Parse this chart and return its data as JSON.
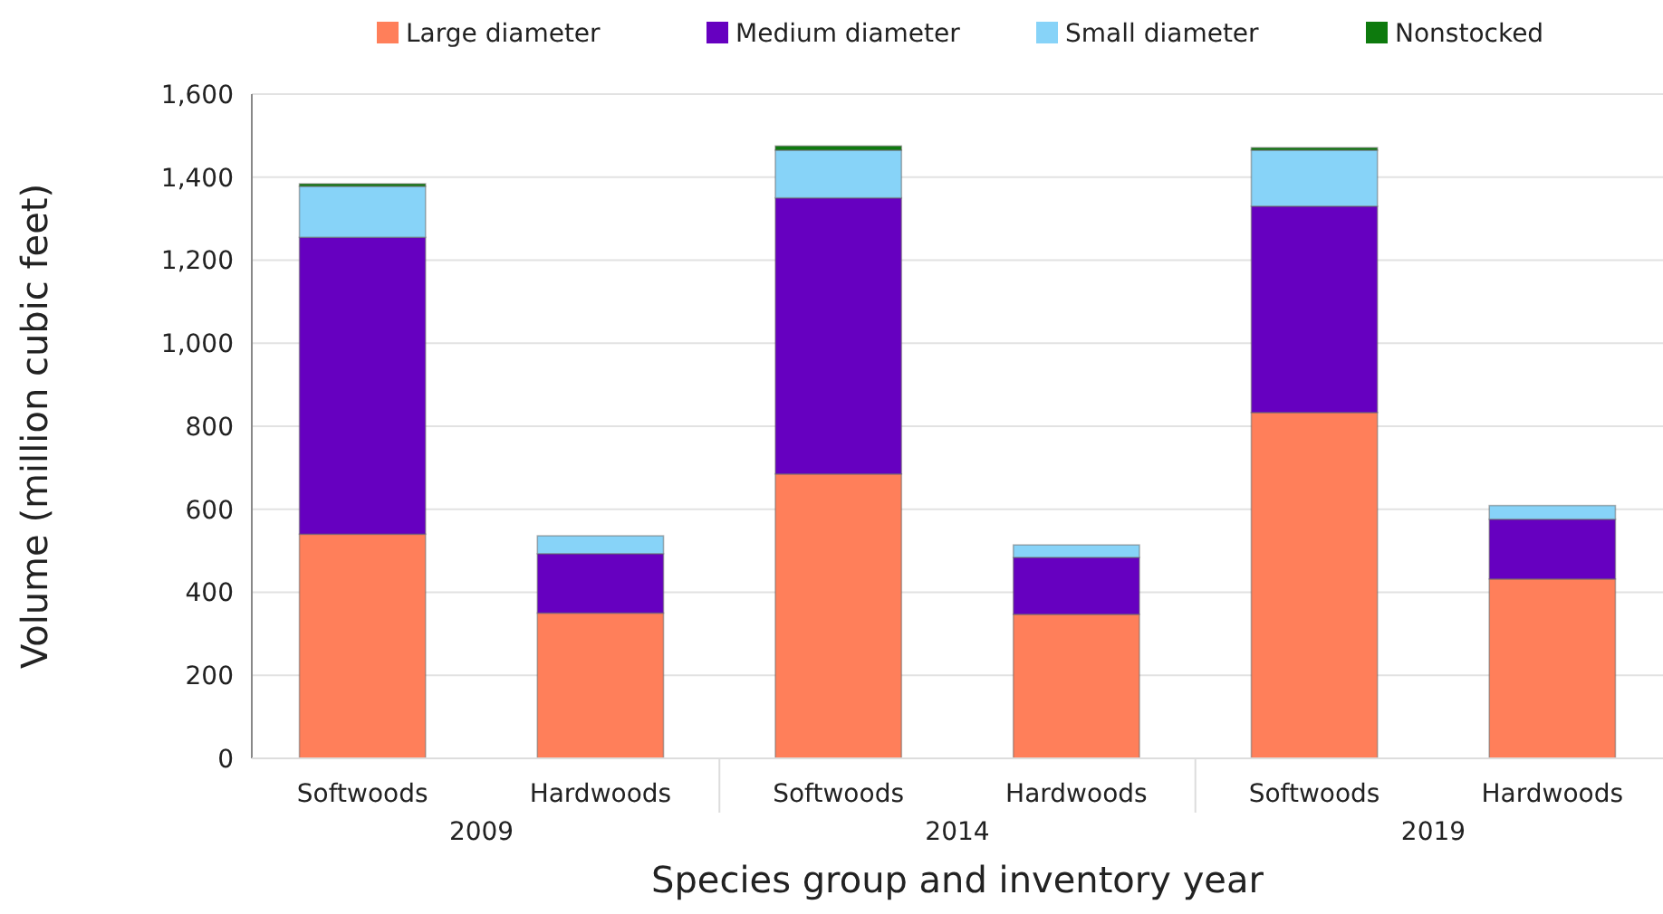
{
  "chart_data": {
    "type": "bar",
    "stacked": true,
    "xlabel": "Species group and inventory year",
    "ylabel": "Volume (million cubic feet)",
    "categories": [
      "Softwoods",
      "Hardwoods",
      "Softwoods",
      "Hardwoods",
      "Softwoods",
      "Hardwoods"
    ],
    "annotations": [
      "2009",
      "2014",
      "2019"
    ],
    "series": [
      {
        "name": "Large diameter",
        "color": "#ff7f5a",
        "values": [
          540,
          350,
          685,
          347,
          833,
          432
        ]
      },
      {
        "name": "Medium diameter",
        "color": "#6600c0",
        "values": [
          715,
          143,
          665,
          137,
          497,
          144
        ]
      },
      {
        "name": "Small diameter",
        "color": "#87d3f8",
        "values": [
          123,
          43,
          115,
          30,
          135,
          33
        ]
      },
      {
        "name": "Nonstocked",
        "color": "#0d7a0d",
        "values": [
          6,
          0,
          10,
          0,
          6,
          0
        ]
      }
    ],
    "ylim": [
      0,
      1600
    ],
    "yticks": [
      {
        "value": 0,
        "label": "0"
      },
      {
        "value": 200,
        "label": "200"
      },
      {
        "value": 400,
        "label": "400"
      },
      {
        "value": 600,
        "label": "600"
      },
      {
        "value": 800,
        "label": "800"
      },
      {
        "value": 1000,
        "label": "1,000"
      },
      {
        "value": 1200,
        "label": "1,200"
      },
      {
        "value": 1400,
        "label": "1,400"
      },
      {
        "value": 1600,
        "label": "1,600"
      }
    ],
    "grid": "y",
    "legend": "top"
  }
}
